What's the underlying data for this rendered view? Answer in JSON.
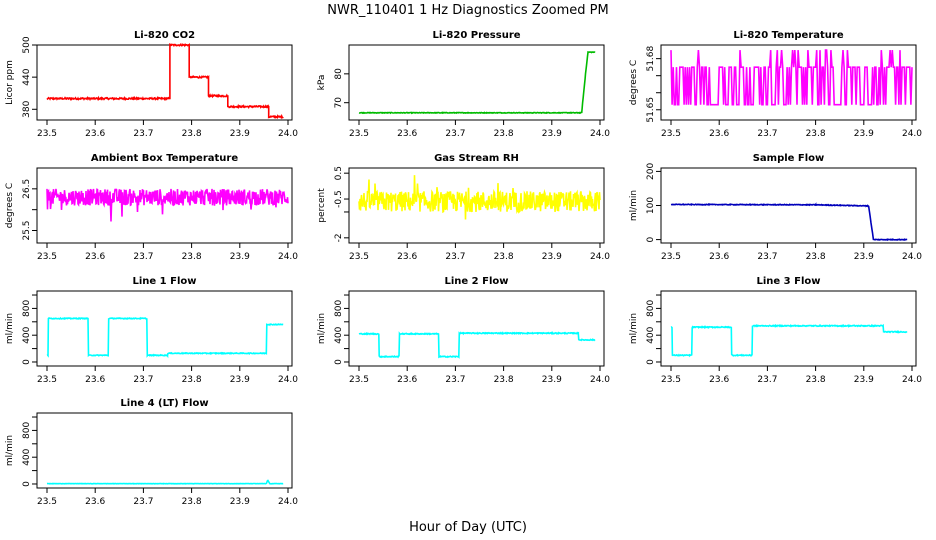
{
  "main_title": "NWR_110401  1 Hz Diagnostics Zoomed PM",
  "x_label": "Hour of Day (UTC)",
  "chart_data": [
    {
      "type": "line",
      "title": "Li-820 CO2",
      "ylabel": "Licor ppm",
      "color": "#ff0000",
      "xlim": [
        23.5,
        24.0
      ],
      "ylim": [
        360,
        500
      ],
      "yticks": [
        380,
        440,
        500
      ],
      "yticks_minor": [],
      "series": [
        {
          "x": [
            23.5,
            23.755,
            23.755,
            23.795,
            23.795,
            23.835,
            23.835,
            23.875,
            23.875,
            23.96,
            23.96,
            23.99
          ],
          "y": [
            400,
            400,
            500,
            500,
            440,
            440,
            405,
            405,
            385,
            385,
            366,
            366
          ],
          "noise": 1.5
        }
      ]
    },
    {
      "type": "line",
      "title": "Li-820 Pressure",
      "ylabel": "kPa",
      "color": "#00bb00",
      "xlim": [
        23.5,
        24.0
      ],
      "ylim": [
        64,
        90
      ],
      "yticks": [
        70,
        80
      ],
      "yticks_minor": [],
      "series": [
        {
          "x": [
            23.5,
            23.953,
            23.962,
            23.97,
            23.975,
            23.99
          ],
          "y": [
            66.5,
            66.5,
            66.5,
            80,
            87.5,
            87.5
          ],
          "noise": 0.1
        }
      ]
    },
    {
      "type": "line",
      "title": "Li-820 Temperature",
      "ylabel": "degrees C",
      "color": "#ff00ff",
      "xlim": [
        23.5,
        24.0
      ],
      "ylim": [
        51.644,
        51.688
      ],
      "yticks": [
        51.65,
        51.68
      ],
      "yticks_minor": [
        51.66,
        51.67
      ],
      "series": [
        {
          "x": [
            23.5,
            24.0
          ],
          "y": [
            51.664,
            51.664
          ],
          "band": [
            51.653,
            51.675
          ],
          "spikes": 51.685
        }
      ]
    },
    {
      "type": "line",
      "title": "Ambient Box Temperature",
      "ylabel": "degrees C",
      "color": "#ff00ff",
      "xlim": [
        23.5,
        24.0
      ],
      "ylim": [
        25.2,
        27.0
      ],
      "yticks": [
        25.5,
        26.5
      ],
      "yticks_minor": [
        26.0
      ],
      "series": [
        {
          "x": [
            23.5,
            24.0
          ],
          "y": [
            26.3,
            26.3
          ],
          "noise": 0.2
        }
      ]
    },
    {
      "type": "line",
      "title": "Gas Stream RH",
      "ylabel": "percent",
      "color": "#ffff00",
      "xlim": [
        23.5,
        24.0
      ],
      "ylim": [
        -2.2,
        0.7
      ],
      "yticks": [
        -2.0,
        -0.5,
        0.5
      ],
      "yticks_minor": [
        -1.0
      ],
      "series": [
        {
          "x": [
            23.5,
            24.0
          ],
          "y": [
            -0.6,
            -0.6
          ],
          "noise": 0.4
        }
      ]
    },
    {
      "type": "line",
      "title": "Sample Flow",
      "ylabel": "ml/min",
      "color": "#0000bb",
      "xlim": [
        23.5,
        24.0
      ],
      "ylim": [
        -10,
        210
      ],
      "yticks": [
        0,
        100,
        200
      ],
      "yticks_minor": [],
      "series": [
        {
          "x": [
            23.5,
            23.8,
            23.905,
            23.91,
            23.92,
            23.99
          ],
          "y": [
            103,
            102,
            99,
            99,
            0,
            0
          ],
          "noise": 1.0
        }
      ]
    },
    {
      "type": "line",
      "title": "Line 1 Flow",
      "ylabel": "ml/min",
      "color": "#00ffff",
      "xlim": [
        23.5,
        24.0
      ],
      "ylim": [
        -60,
        1060
      ],
      "yticks": [
        0,
        400,
        800
      ],
      "yticks_minor": [
        200,
        600,
        1000
      ],
      "series": [
        {
          "x": [
            23.5,
            23.502,
            23.503,
            23.585,
            23.586,
            23.627,
            23.628,
            23.707,
            23.708,
            23.75,
            23.751,
            23.955,
            23.956,
            23.962,
            23.99
          ],
          "y": [
            100,
            100,
            650,
            650,
            100,
            100,
            650,
            650,
            100,
            100,
            130,
            130,
            560,
            560,
            560
          ],
          "noise": 6
        }
      ]
    },
    {
      "type": "line",
      "title": "Line 2 Flow",
      "ylabel": "ml/min",
      "color": "#00ffff",
      "xlim": [
        23.5,
        24.0
      ],
      "ylim": [
        -60,
        1060
      ],
      "yticks": [
        0,
        400,
        800
      ],
      "yticks_minor": [
        200,
        600,
        1000
      ],
      "series": [
        {
          "x": [
            23.5,
            23.541,
            23.542,
            23.583,
            23.584,
            23.665,
            23.666,
            23.707,
            23.708,
            23.955,
            23.956,
            23.99
          ],
          "y": [
            420,
            420,
            80,
            80,
            420,
            420,
            80,
            80,
            430,
            430,
            330,
            330
          ],
          "noise": 7
        }
      ]
    },
    {
      "type": "line",
      "title": "Line 3 Flow",
      "ylabel": "ml/min",
      "color": "#00ffff",
      "xlim": [
        23.5,
        24.0
      ],
      "ylim": [
        -60,
        1060
      ],
      "yticks": [
        0,
        400,
        800
      ],
      "yticks_minor": [
        200,
        600,
        1000
      ],
      "series": [
        {
          "x": [
            23.5,
            23.502,
            23.503,
            23.543,
            23.544,
            23.625,
            23.626,
            23.668,
            23.669,
            23.94,
            23.941,
            23.99
          ],
          "y": [
            520,
            520,
            100,
            100,
            520,
            520,
            100,
            100,
            540,
            540,
            450,
            450
          ],
          "noise": 7
        }
      ]
    },
    {
      "type": "line",
      "title": "Line 4 (LT) Flow",
      "ylabel": "ml/min",
      "color": "#00ffff",
      "xlim": [
        23.5,
        24.0
      ],
      "ylim": [
        -60,
        1060
      ],
      "yticks": [
        0,
        400,
        800
      ],
      "yticks_minor": [
        200,
        600,
        1000
      ],
      "series": [
        {
          "x": [
            23.5,
            23.955,
            23.958,
            23.962,
            23.99
          ],
          "y": [
            5,
            5,
            60,
            5,
            5
          ],
          "noise": 2
        }
      ]
    }
  ],
  "x_ticks": [
    "23.5",
    "23.6",
    "23.7",
    "23.8",
    "23.9",
    "24.0"
  ]
}
